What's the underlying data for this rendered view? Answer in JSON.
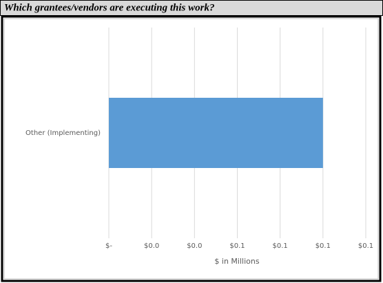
{
  "chart_data": {
    "type": "bar",
    "orientation": "horizontal",
    "title": "Which grantees/vendors are executing this work?",
    "x_label": "$ in Millions",
    "categories": [
      "Other (Implementing)"
    ],
    "values": [
      0.1
    ],
    "color": "#5b9bd5",
    "xlim": [
      0,
      0.12
    ],
    "xticks": [
      {
        "value": 0,
        "label": "$-"
      },
      {
        "value": 0.02,
        "label": "$0.0"
      },
      {
        "value": 0.04,
        "label": "$0.0"
      },
      {
        "value": 0.06,
        "label": "$0.1"
      },
      {
        "value": 0.08,
        "label": "$0.1"
      },
      {
        "value": 0.1,
        "label": "$0.1"
      },
      {
        "value": 0.12,
        "label": "$0.1"
      }
    ],
    "grid": true
  }
}
